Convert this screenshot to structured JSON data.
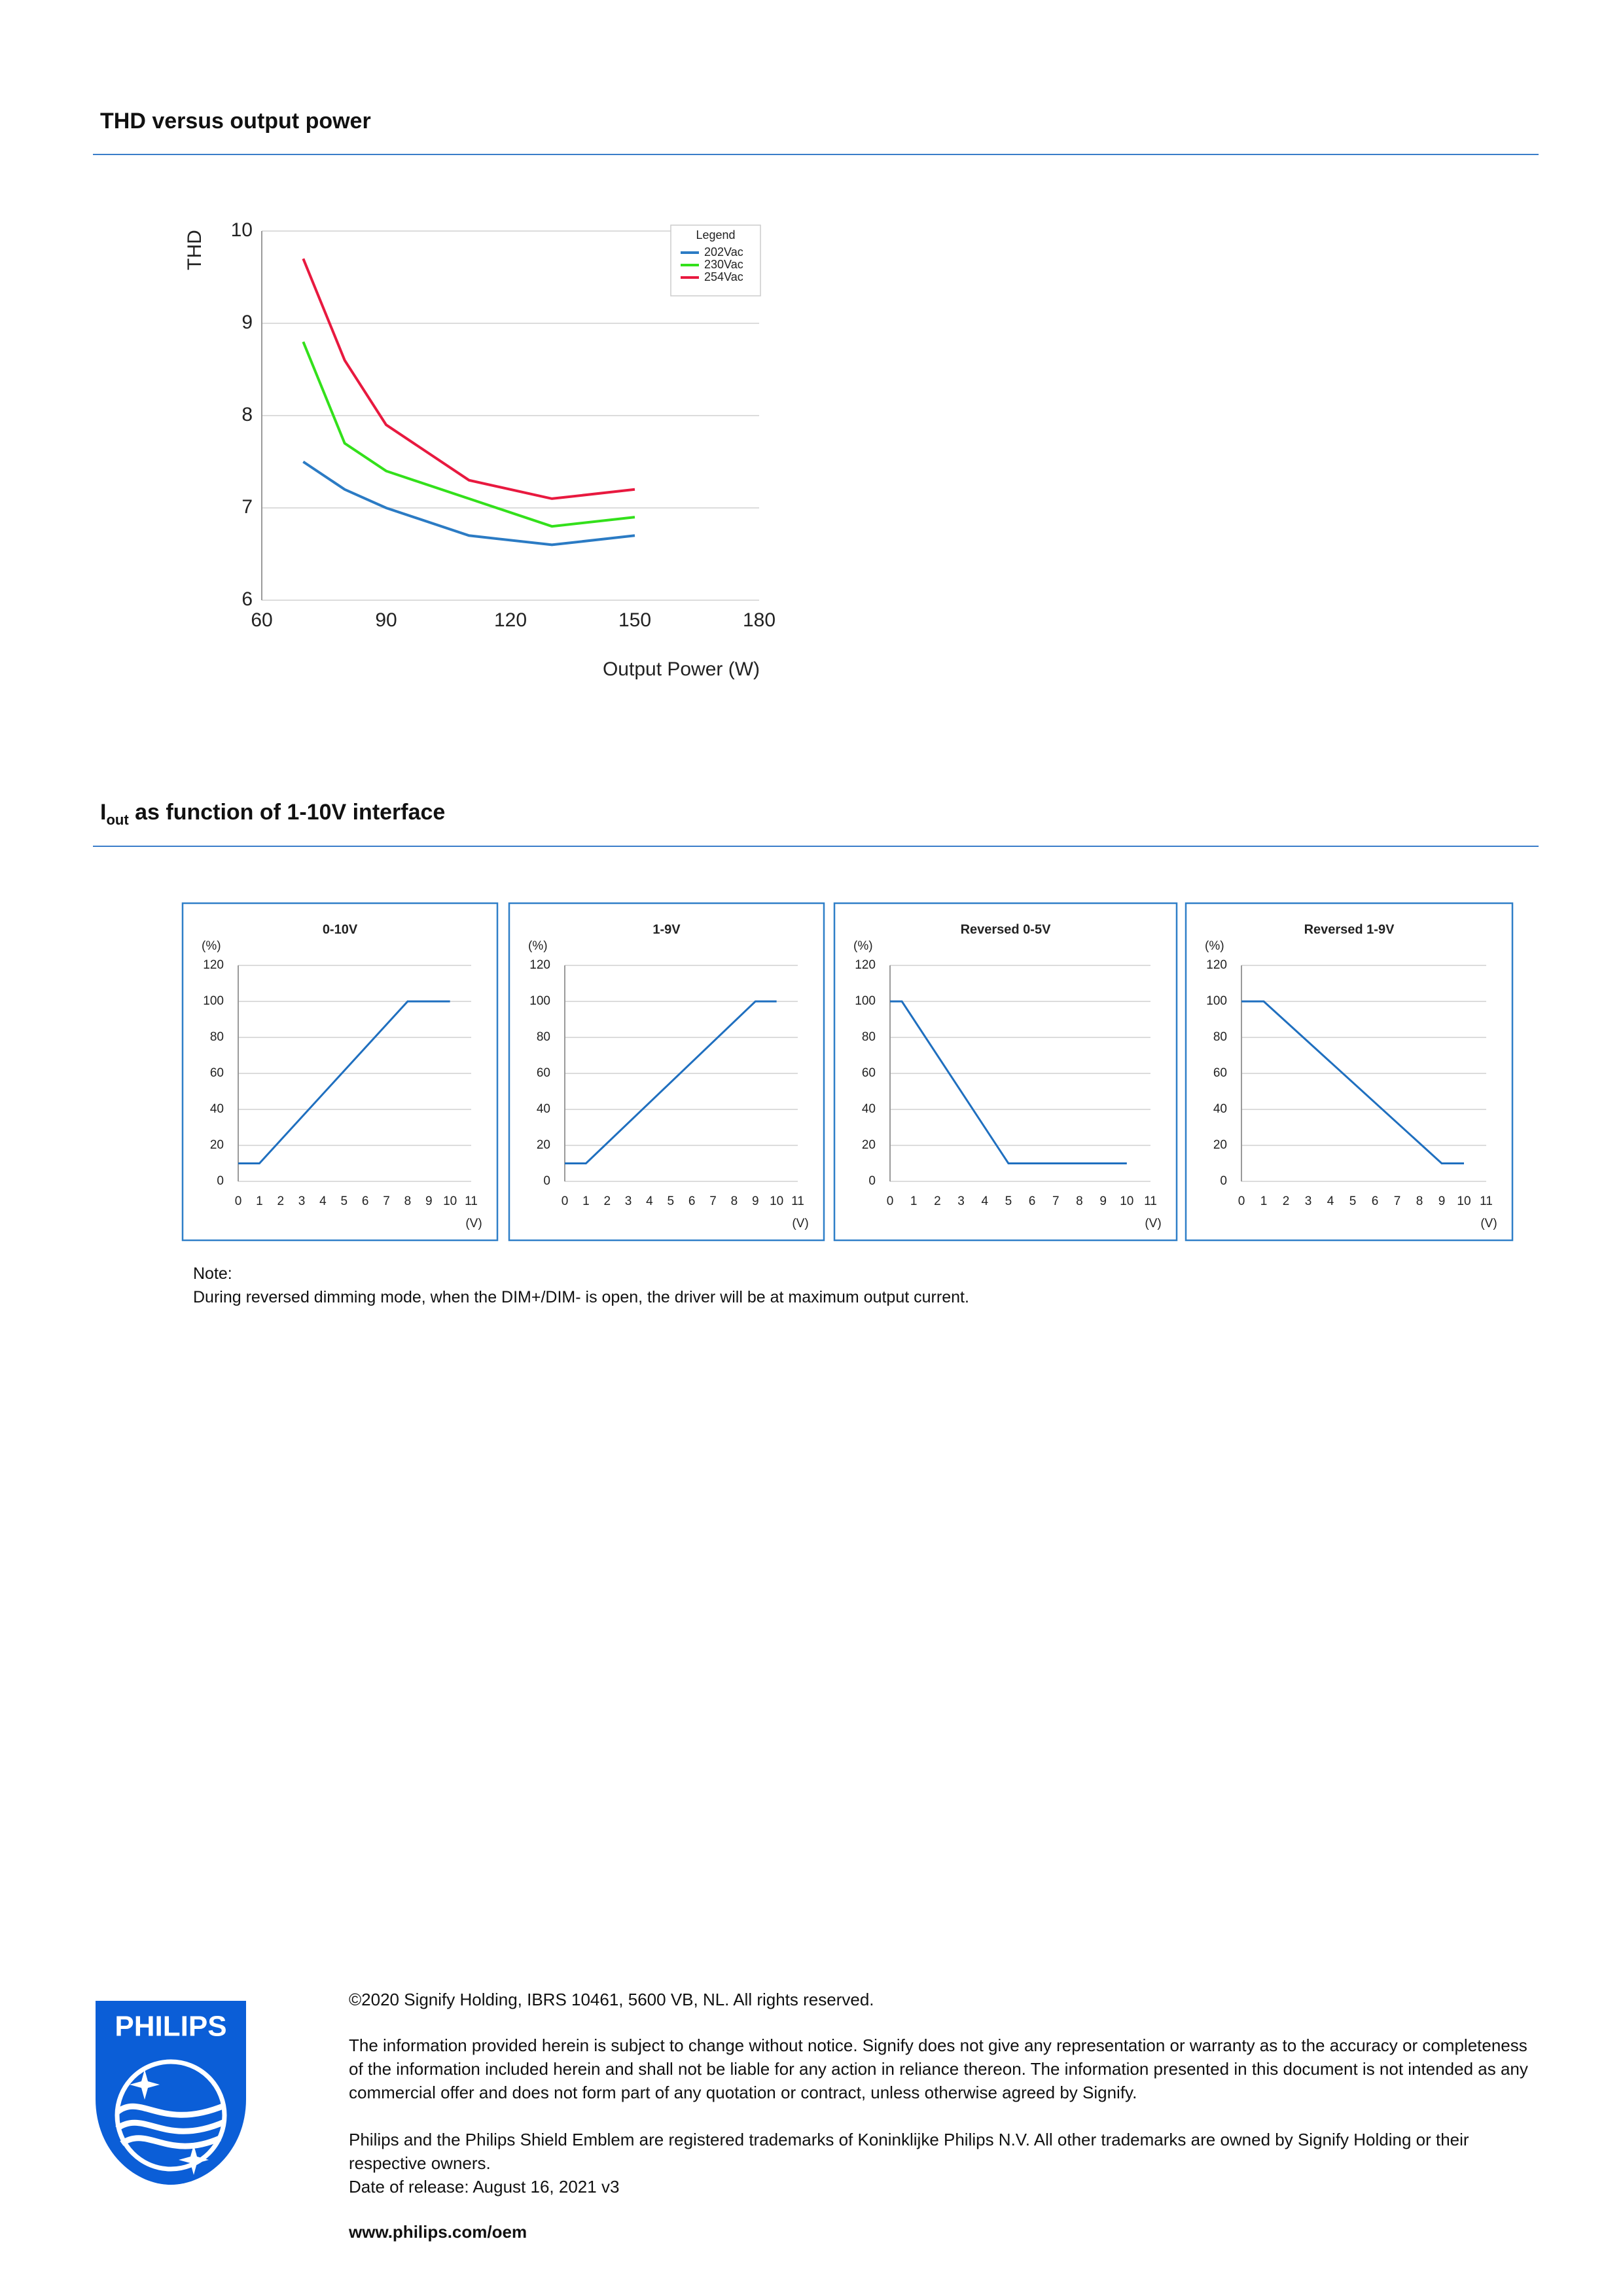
{
  "heading1": "THD versus output power",
  "heading2": {
    "main": "I",
    "sub": "out",
    "rest": " as function of 1-10V interface"
  },
  "chart_data": [
    {
      "type": "line",
      "y_label": "THD",
      "x_label": "Output Power (W)",
      "legend_title": "Legend",
      "legend": "upper right",
      "grid": true,
      "x": [
        70,
        80,
        90,
        110,
        130,
        150
      ],
      "xlim": [
        60,
        180
      ],
      "xticks": [
        60,
        90,
        120,
        150,
        180
      ],
      "ylim": [
        6,
        10
      ],
      "yticks": [
        6,
        7,
        8,
        9,
        10
      ],
      "series": [
        {
          "name": "202Vac",
          "color": "#2b7bc4",
          "values": [
            7.5,
            7.2,
            7.0,
            6.7,
            6.6,
            6.7
          ]
        },
        {
          "name": "230Vac",
          "color": "#33e01b",
          "values": [
            8.8,
            7.7,
            7.4,
            7.1,
            6.8,
            6.9
          ]
        },
        {
          "name": "254Vac",
          "color": "#e8193f",
          "values": [
            9.7,
            8.6,
            7.9,
            7.3,
            7.1,
            7.2
          ]
        }
      ]
    },
    {
      "type": "line",
      "title": "0-10V",
      "y_unit": "(%)",
      "x_unit": "(V)",
      "grid": true,
      "x": [
        0,
        1,
        8,
        10
      ],
      "xlim": [
        0,
        11
      ],
      "xticks": [
        0,
        1,
        2,
        3,
        4,
        5,
        6,
        7,
        8,
        9,
        10,
        11
      ],
      "ylim": [
        0,
        120
      ],
      "yticks": [
        0,
        20,
        40,
        60,
        80,
        100,
        120
      ],
      "series": [
        {
          "color": "#1f6fbf",
          "values": [
            10,
            10,
            100,
            100
          ]
        }
      ]
    },
    {
      "type": "line",
      "title": "1-9V",
      "y_unit": "(%)",
      "x_unit": "(V)",
      "grid": true,
      "x": [
        0,
        1,
        9,
        10
      ],
      "xlim": [
        0,
        11
      ],
      "xticks": [
        0,
        1,
        2,
        3,
        4,
        5,
        6,
        7,
        8,
        9,
        10,
        11
      ],
      "ylim": [
        0,
        120
      ],
      "yticks": [
        0,
        20,
        40,
        60,
        80,
        100,
        120
      ],
      "series": [
        {
          "color": "#1f6fbf",
          "values": [
            10,
            10,
            100,
            100
          ]
        }
      ]
    },
    {
      "type": "line",
      "title": "Reversed 0-5V",
      "y_unit": "(%)",
      "x_unit": "(V)",
      "grid": true,
      "x": [
        0,
        0.5,
        5,
        10
      ],
      "xlim": [
        0,
        11
      ],
      "xticks": [
        0,
        1,
        2,
        3,
        4,
        5,
        6,
        7,
        8,
        9,
        10,
        11
      ],
      "ylim": [
        0,
        120
      ],
      "yticks": [
        0,
        20,
        40,
        60,
        80,
        100,
        120
      ],
      "series": [
        {
          "color": "#1f6fbf",
          "values": [
            100,
            100,
            10,
            10
          ]
        }
      ]
    },
    {
      "type": "line",
      "title": "Reversed 1-9V",
      "y_unit": "(%)",
      "x_unit": "(V)",
      "grid": true,
      "x": [
        0,
        1,
        9,
        10
      ],
      "xlim": [
        0,
        11
      ],
      "xticks": [
        0,
        1,
        2,
        3,
        4,
        5,
        6,
        7,
        8,
        9,
        10,
        11
      ],
      "ylim": [
        0,
        120
      ],
      "yticks": [
        0,
        20,
        40,
        60,
        80,
        100,
        120
      ],
      "series": [
        {
          "color": "#1f6fbf",
          "values": [
            100,
            100,
            10,
            10
          ]
        }
      ]
    }
  ],
  "note": {
    "label": "Note:",
    "text": "During reversed dimming mode, when the DIM+/DIM- is open, the driver will be at maximum output current."
  },
  "footer": {
    "logo": "PHILIPS",
    "copyright": "©2020 Signify Holding, IBRS 10461, 5600 VB, NL. All rights reserved.",
    "disclaimer": "The information provided herein is subject to change without notice. Signify does not give any representation or warranty as to the accuracy or completeness of the information included herein and shall not be liable for any action in reliance thereon. The information presented in this document is not intended as any commercial offer and does not form part of any quotation or contract, unless otherwise agreed by Signify.",
    "trademarks": "Philips and the Philips Shield Emblem are registered trademarks of Koninklijke Philips N.V. All other trademarks are owned by Signify Holding or their respective owners.",
    "release": "Date of release: August 16, 2021 v3",
    "url": "www.philips.com/oem"
  }
}
